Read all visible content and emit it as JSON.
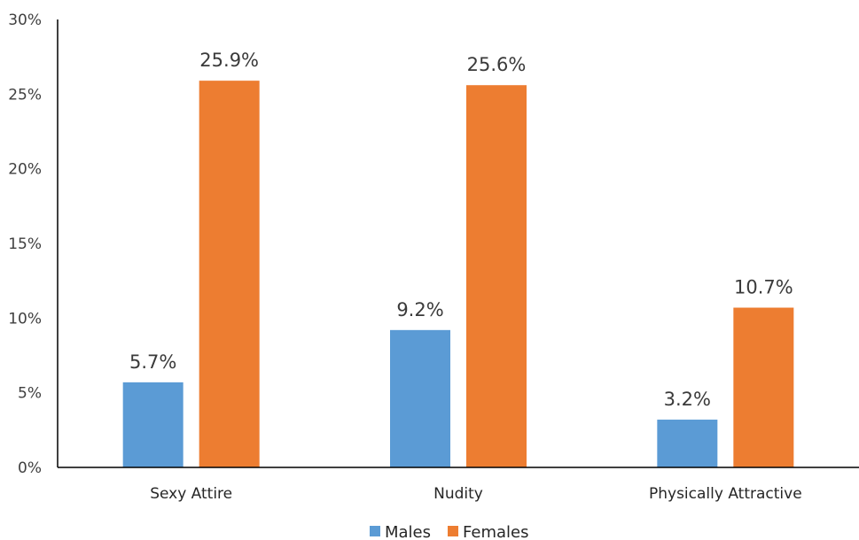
{
  "chart_data": {
    "type": "bar",
    "categories": [
      "Sexy Attire",
      "Nudity",
      "Physically Attractive"
    ],
    "series": [
      {
        "name": "Males",
        "values": [
          5.7,
          9.2,
          3.2
        ],
        "labels": [
          "5.7%",
          "9.2%",
          "3.2%"
        ],
        "color": "#5b9bd5"
      },
      {
        "name": "Females",
        "values": [
          25.9,
          25.6,
          10.7
        ],
        "labels": [
          "25.9%",
          "25.6%",
          "10.7%"
        ],
        "color": "#ed7d31"
      }
    ],
    "ylim": [
      0,
      30
    ],
    "yticks": [
      "0%",
      "5%",
      "10%",
      "15%",
      "20%",
      "25%",
      "30%"
    ],
    "grid": false,
    "legend": "bottom-center"
  }
}
